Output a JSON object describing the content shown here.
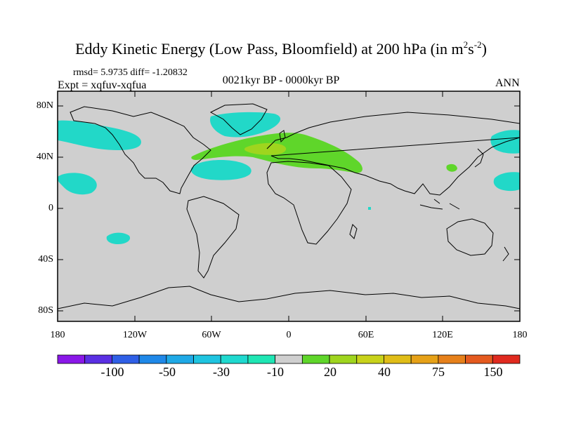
{
  "title": {
    "text": "Eddy Kinetic Energy (Low Pass, Bloomfield) at 200 hPa (in m",
    "sup1": "2",
    "mid": "s",
    "sup2": "-2",
    "close": ")"
  },
  "stats": "rmsd= 5.9735 diff= -1.20832",
  "experiment": "Expt = xqfuv-xqfua",
  "period": "0021kyr BP - 0000kyr BP",
  "season": "ANN",
  "axes": {
    "lat_labels": [
      "80N",
      "40N",
      "0",
      "40S",
      "80S"
    ],
    "lon_labels": [
      "180",
      "120W",
      "60W",
      "0",
      "60E",
      "120E",
      "180"
    ]
  },
  "colorbar": {
    "colors": [
      "#8a17e8",
      "#5a2fe3",
      "#2f5fe6",
      "#1f88e8",
      "#1fa9e6",
      "#1fc4e0",
      "#1fd9cf",
      "#1fe6b4",
      "#cfcfcf",
      "#5fd62a",
      "#9fd51e",
      "#c8d21a",
      "#e0bd17",
      "#e6a117",
      "#e6801a",
      "#e45a1f",
      "#e02a1f"
    ],
    "labels": [
      "-100",
      "-50",
      "-30",
      "-10",
      "20",
      "40",
      "75",
      "150"
    ]
  },
  "map_colors": {
    "background": "#cfcfcf",
    "cyan": "#22d8c8",
    "green": "#5fd62a",
    "yellowgreen": "#9fd51e"
  }
}
